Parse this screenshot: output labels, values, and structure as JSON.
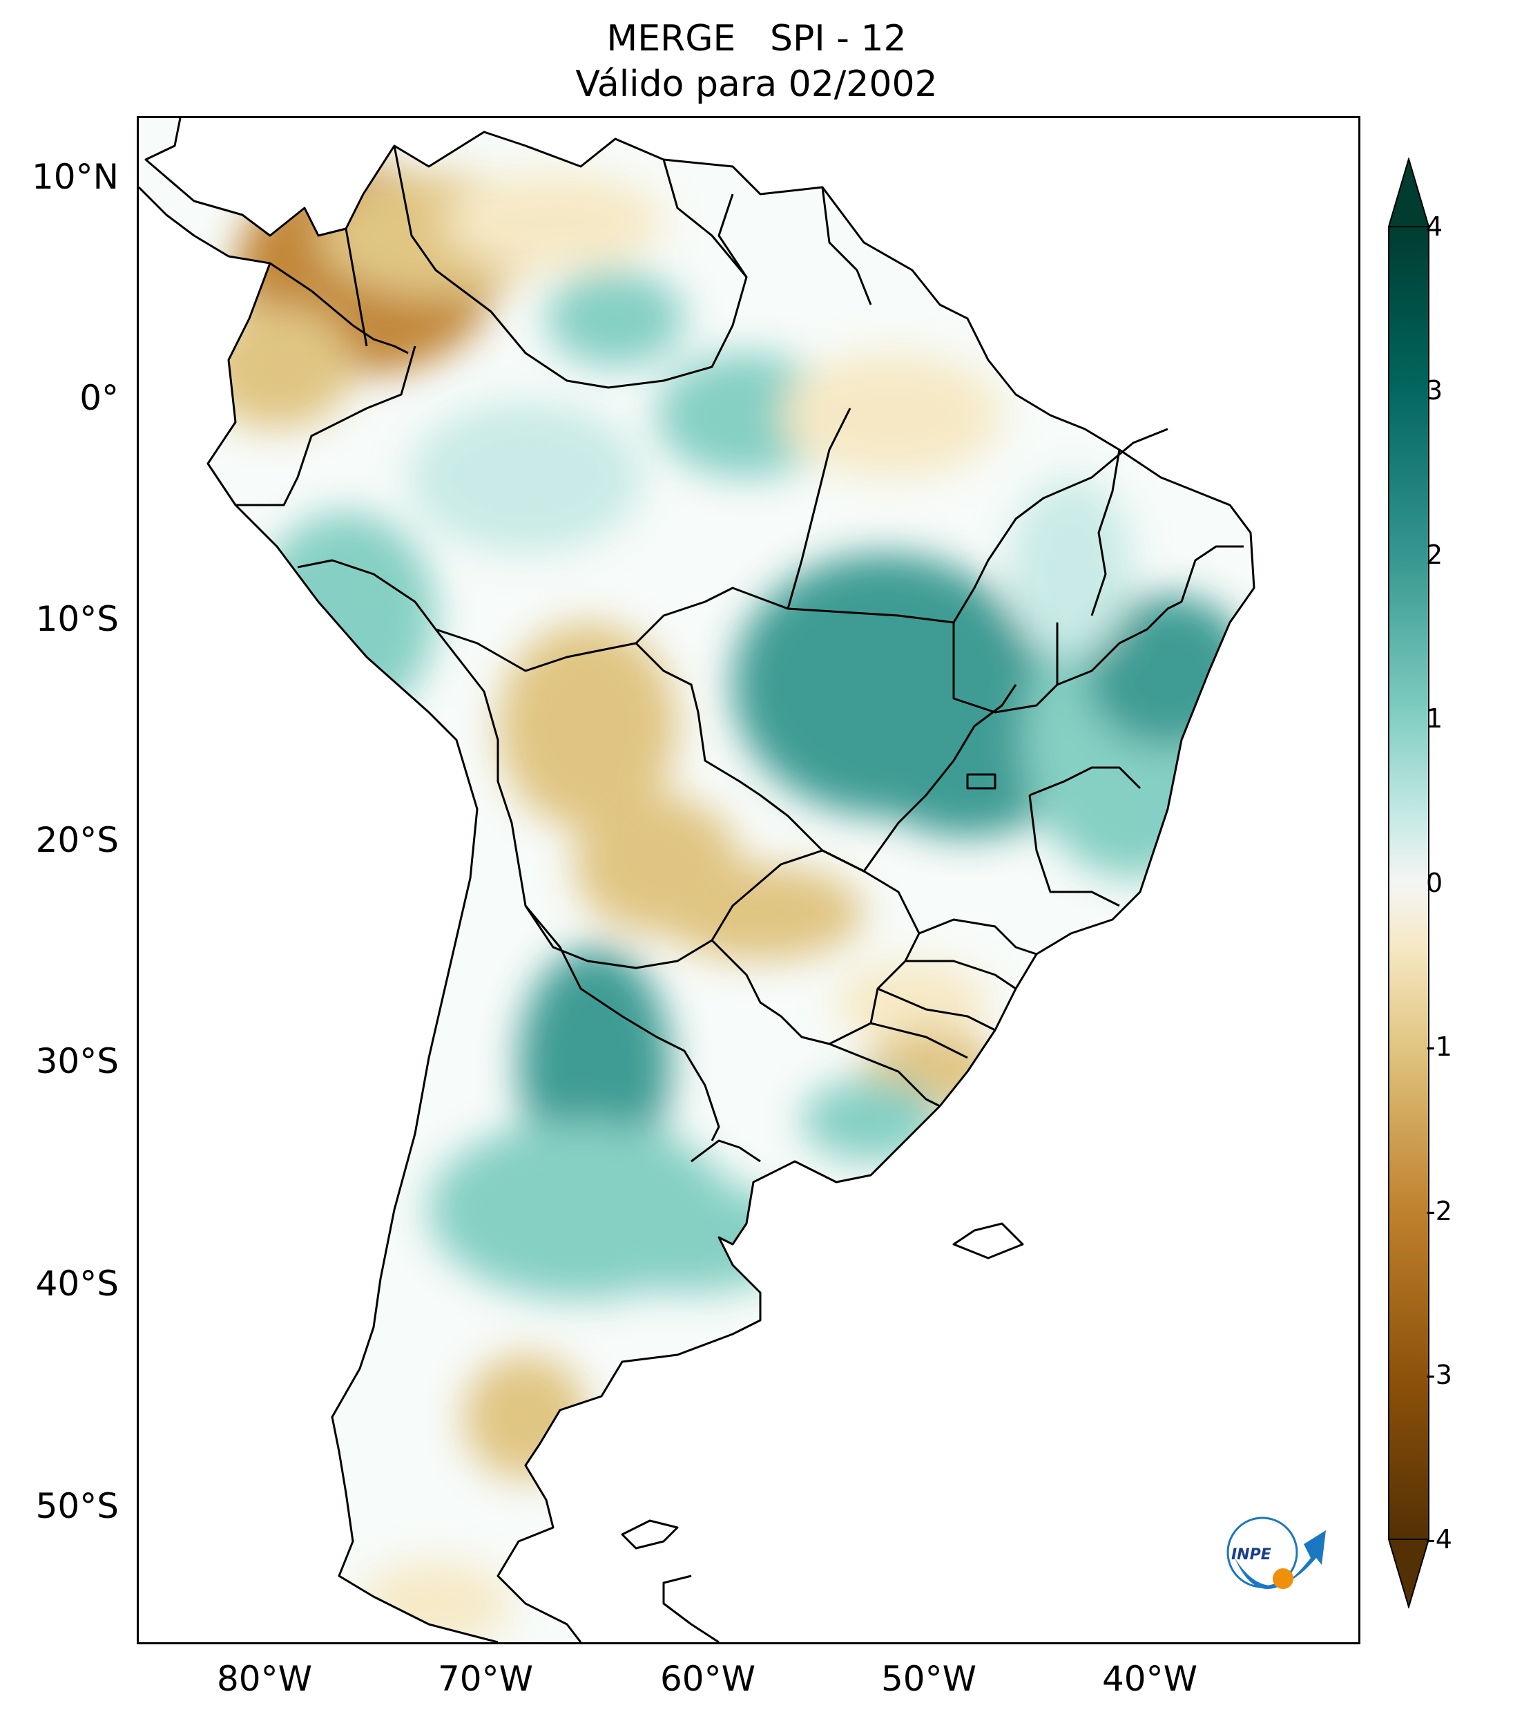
{
  "title": {
    "line1": "MERGE   SPI - 12",
    "line2": "Válido para 02/2002"
  },
  "axes": {
    "lat_ticks": [
      "10°N",
      "0°",
      "10°S",
      "20°S",
      "30°S",
      "40°S",
      "50°S"
    ],
    "lon_ticks": [
      "80°W",
      "70°W",
      "60°W",
      "50°W",
      "40°W"
    ],
    "lat_values": [
      10,
      0,
      -10,
      -20,
      -30,
      -40,
      -50
    ],
    "lon_values": [
      -80,
      -70,
      -60,
      -50,
      -40
    ],
    "lon_range": [
      -85,
      -29.5
    ],
    "lat_range": [
      -56,
      12.7
    ]
  },
  "colorbar": {
    "ticks": [
      "4",
      "3",
      "2",
      "1",
      "0",
      "-1",
      "-2",
      "-3",
      "-4"
    ],
    "tick_values": [
      4,
      3,
      2,
      1,
      0,
      -1,
      -2,
      -3,
      -4
    ],
    "range": [
      -4,
      4
    ],
    "extend": "both",
    "colors": {
      "wet_extreme": "#003c30",
      "wet_strong": "#01665e",
      "wet_moderate": "#35978f",
      "wet_light": "#80cdc1",
      "wet_faint": "#c7eae5",
      "neutral": "#f5f5f5",
      "dry_faint": "#f6e8c3",
      "dry_light": "#dfc27d",
      "dry_moderate": "#bf812d",
      "dry_strong": "#8c510a",
      "dry_extreme": "#543005"
    }
  },
  "logo": {
    "text": "INPE",
    "colors": {
      "blue": "#1a78c2",
      "orange": "#f0900a"
    }
  },
  "colors": {
    "coastline": "#000000",
    "background": "#ffffff"
  }
}
